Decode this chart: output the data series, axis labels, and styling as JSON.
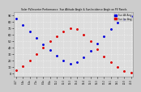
{
  "title": "Solar PV/Inverter Performance  Sun Altitude Angle & Sun Incidence Angle on PV Panels",
  "x_labels": [
    "4:57",
    "5:4a",
    "6:1a",
    "7:1a",
    "8:1a",
    "9:1a",
    "10:2",
    "11:3",
    "12:3",
    "13:4",
    "14:4",
    "15:3",
    "16:3",
    "17:2",
    "18:1",
    "19:1",
    "20:0",
    "21:0"
  ],
  "ylim": [
    -5,
    95
  ],
  "xlim": [
    -5,
    260
  ],
  "bg_color": "#cccccc",
  "plot_bg": "#dddddd",
  "grid_color": "#bbbbbb",
  "blue_color": "#0000dd",
  "red_color": "#dd0000",
  "blue_label": "Sun Alt Ang",
  "red_label": "Sun Inc Ang",
  "blue_x": [
    0,
    15,
    30,
    45,
    60,
    75,
    90,
    105,
    120,
    135,
    150,
    165,
    180,
    195,
    210,
    225,
    240,
    255
  ],
  "blue_y": [
    85,
    75,
    65,
    55,
    45,
    36,
    28,
    20,
    15,
    18,
    25,
    35,
    46,
    58,
    68,
    78,
    84,
    88
  ],
  "red_x": [
    0,
    15,
    30,
    45,
    60,
    75,
    90,
    105,
    120,
    135,
    150,
    165,
    180,
    195,
    210,
    225,
    240,
    255
  ],
  "red_y": [
    5,
    12,
    20,
    30,
    40,
    50,
    58,
    65,
    70,
    68,
    60,
    50,
    38,
    26,
    18,
    10,
    4,
    2
  ],
  "yticks": [
    0,
    10,
    20,
    30,
    40,
    50,
    60,
    70,
    80,
    90
  ],
  "xticks": [
    0,
    15,
    30,
    45,
    60,
    75,
    90,
    105,
    120,
    135,
    150,
    165,
    180,
    195,
    210,
    225,
    240,
    255
  ],
  "marker_size": 1.2
}
